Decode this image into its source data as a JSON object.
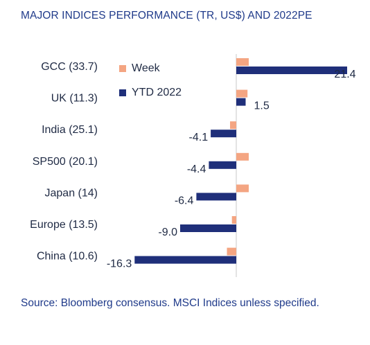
{
  "title": "MAJOR INDICES PERFORMANCE (TR, US$) AND 2022PE",
  "source": "Source: Bloomberg consensus. MSCI Indices unless specified.",
  "colors": {
    "week": "#f4a582",
    "ytd": "#1f2f7a",
    "title": "#1f3a8a",
    "text": "#1f2a44"
  },
  "chart_data": {
    "type": "bar",
    "orientation": "horizontal",
    "categories": [
      "GCC (33.7)",
      "UK (11.3)",
      "India (25.1)",
      "SP500 (20.1)",
      "Japan (14)",
      "Europe (13.5)",
      "China (10.6)"
    ],
    "series": [
      {
        "name": "Week",
        "values": [
          2.0,
          1.8,
          -1.0,
          2.0,
          2.0,
          -0.7,
          -1.5
        ]
      },
      {
        "name": "YTD 2022",
        "values": [
          21.4,
          1.5,
          -4.1,
          -4.4,
          -6.4,
          -9.0,
          -16.3
        ]
      }
    ],
    "data_labels": [
      "21.4",
      "1.5",
      "-4.1",
      "-4.4",
      "-6.4",
      "-9.0",
      "-16.3"
    ],
    "legend": [
      "Week",
      "YTD 2022"
    ],
    "legend_position": "top-left",
    "grid": false
  }
}
